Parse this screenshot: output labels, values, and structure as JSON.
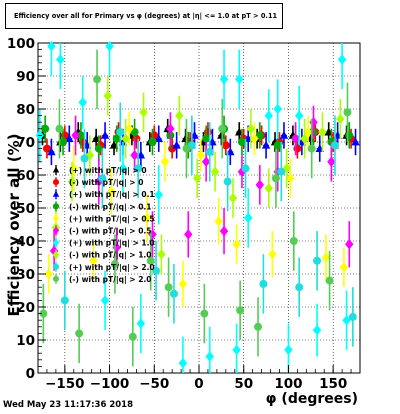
{
  "title": "Efficiency over all for Primary vs φ (degrees) at |η| <= 1.0 at pT > 0.11",
  "timestamp": "Wed May 23 11:17:36 2018",
  "chart_data": {
    "type": "scatter",
    "xlabel": "φ (degrees)",
    "ylabel": "Efficiency over all (%)",
    "xlim": [
      -180,
      180
    ],
    "ylim": [
      0,
      100
    ],
    "x_ticks": [
      -150,
      -100,
      -50,
      0,
      50,
      100,
      150
    ],
    "y_ticks": [
      0,
      10,
      20,
      30,
      40,
      50,
      60,
      70,
      80,
      90,
      100
    ],
    "grid": true,
    "legend_position": "left-middle",
    "series": [
      {
        "name": "(+) with pT/|q| > 0",
        "color": "#000000",
        "marker": "triangle",
        "x": [
          -175,
          -155,
          -135,
          -115,
          -95,
          -75,
          -55,
          -35,
          -15,
          5,
          25,
          45,
          65,
          85,
          105,
          125,
          145,
          165
        ],
        "y": [
          72,
          70,
          73,
          71,
          69,
          72,
          70,
          74,
          71,
          70,
          72,
          73,
          71,
          70,
          72,
          71,
          73,
          72
        ],
        "err": [
          3,
          3,
          3,
          3,
          3,
          3,
          3,
          3,
          3,
          3,
          3,
          3,
          3,
          3,
          3,
          3,
          3,
          3
        ]
      },
      {
        "name": "(-) with pT/|q| > 0",
        "color": "#ff0000",
        "marker": "circle",
        "x": [
          -170,
          -150,
          -130,
          -110,
          -90,
          -70,
          -50,
          -30,
          -10,
          10,
          30,
          50,
          70,
          90,
          110,
          130,
          150,
          170
        ],
        "y": [
          68,
          72,
          70,
          69,
          73,
          71,
          72,
          68,
          70,
          73,
          69,
          71,
          72,
          70,
          68,
          73,
          70,
          71
        ],
        "err": [
          3,
          3,
          3,
          3,
          3,
          3,
          3,
          3,
          3,
          3,
          3,
          3,
          3,
          3,
          3,
          3,
          3,
          3
        ]
      },
      {
        "name": "(+) with pT/|q| > 0.1",
        "color": "#0000ff",
        "marker": "triangle",
        "x": [
          -165,
          -145,
          -125,
          -105,
          -85,
          -65,
          -45,
          -25,
          -5,
          15,
          35,
          55,
          75,
          95,
          115,
          135,
          155,
          175
        ],
        "y": [
          67,
          71,
          69,
          72,
          70,
          66,
          71,
          69,
          72,
          70,
          67,
          71,
          69,
          72,
          70,
          68,
          72,
          70
        ],
        "err": [
          4,
          4,
          4,
          4,
          4,
          4,
          4,
          4,
          4,
          4,
          4,
          4,
          4,
          4,
          4,
          4,
          4,
          4
        ]
      },
      {
        "name": "(-) with pT/|q| > 0.1",
        "color": "#00aa00",
        "marker": "circle",
        "x": [
          -172,
          -152,
          -132,
          -112,
          -92,
          -72,
          -52,
          -32,
          -12,
          8,
          28,
          48,
          68,
          88,
          108,
          128,
          148,
          168
        ],
        "y": [
          74,
          70,
          72,
          68,
          71,
          73,
          70,
          72,
          69,
          71,
          74,
          70,
          72,
          69,
          71,
          73,
          70,
          72
        ],
        "err": [
          4,
          4,
          4,
          4,
          4,
          4,
          4,
          4,
          4,
          4,
          4,
          4,
          4,
          4,
          4,
          4,
          4,
          4
        ]
      },
      {
        "name": "(+) with pT/|q| > 0.5",
        "color": "#ffff00",
        "marker": "diamond",
        "x": [
          -168,
          -140,
          -118,
          -98,
          -78,
          -58,
          -38,
          -18,
          2,
          22,
          42,
          62,
          82,
          102,
          122,
          142,
          162
        ],
        "y": [
          30,
          62,
          34,
          55,
          74,
          47,
          64,
          27,
          66,
          46,
          39,
          71,
          36,
          59,
          73,
          35,
          32
        ],
        "err": [
          6,
          7,
          6,
          7,
          5,
          7,
          6,
          7,
          5,
          7,
          6,
          5,
          7,
          6,
          5,
          7,
          6
        ]
      },
      {
        "name": "(-) with pT/|q| > 0.5",
        "color": "#ff00ff",
        "marker": "diamond",
        "x": [
          -162,
          -138,
          -112,
          -92,
          -72,
          -52,
          -32,
          -12,
          8,
          28,
          48,
          68,
          88,
          108,
          128,
          148,
          168
        ],
        "y": [
          37,
          72,
          58,
          38,
          66,
          42,
          74,
          42,
          64,
          43,
          61,
          57,
          61,
          71,
          76,
          64,
          39
        ],
        "err": [
          6,
          6,
          7,
          6,
          5,
          7,
          5,
          7,
          6,
          7,
          5,
          6,
          6,
          5,
          5,
          6,
          7
        ]
      },
      {
        "name": "(+) with pT/|q| > 1.0",
        "color": "#00ffff",
        "marker": "diamond",
        "x": [
          -178,
          -165,
          -155,
          -130,
          -105,
          -100,
          -85,
          -65,
          -45,
          -18,
          12,
          28,
          42,
          45,
          55,
          78,
          88,
          100,
          112,
          132,
          160,
          165
        ],
        "y": [
          72,
          99,
          95,
          82,
          22,
          99,
          62,
          15,
          54,
          3,
          5,
          89,
          7,
          89,
          47,
          78,
          80,
          7,
          78,
          13,
          95,
          16
        ],
        "err": [
          8,
          9,
          9,
          8,
          9,
          9,
          8,
          9,
          9,
          8,
          9,
          9,
          8,
          9,
          9,
          8,
          9,
          8,
          9,
          8,
          9,
          9
        ],
        "comment": ""
      },
      {
        "name": "(-) with pT/|q| > 1.0",
        "color": "#aaff00",
        "marker": "diamond",
        "x": [
          -160,
          -142,
          -122,
          -102,
          -82,
          -62,
          -42,
          -22,
          -2,
          18,
          38,
          58,
          78,
          98,
          118,
          138,
          158
        ],
        "y": [
          44,
          58,
          66,
          84,
          71,
          79,
          36,
          78,
          59,
          61,
          53,
          74,
          56,
          62,
          71,
          73,
          77
        ],
        "err": [
          6,
          6,
          6,
          6,
          6,
          6,
          6,
          6,
          6,
          6,
          6,
          6,
          6,
          6,
          6,
          6,
          6
        ]
      },
      {
        "name": "(+) with pT/|q| > 2.0",
        "color": "#22dddd",
        "marker": "circle",
        "x": [
          -150,
          -128,
          -108,
          -88,
          -68,
          -48,
          -28,
          -8,
          12,
          32,
          52,
          72,
          92,
          112,
          132,
          152,
          172
        ],
        "y": [
          22,
          65,
          59,
          73,
          62,
          31,
          24,
          69,
          67,
          58,
          62,
          27,
          61,
          26,
          34,
          69,
          17
        ],
        "err": [
          9,
          9,
          9,
          9,
          9,
          9,
          9,
          9,
          9,
          9,
          9,
          9,
          9,
          9,
          9,
          9,
          9
        ]
      },
      {
        "name": "(-) with pT/|q| > 2.0",
        "color": "#55cc55",
        "marker": "circle",
        "x": [
          -174,
          -156,
          -134,
          -114,
          -94,
          -74,
          -54,
          -34,
          -14,
          6,
          26,
          46,
          66,
          86,
          106,
          126,
          146,
          166
        ],
        "y": [
          18,
          74,
          12,
          89,
          33,
          11,
          34,
          26,
          68,
          18,
          74,
          19,
          14,
          59,
          40,
          68,
          28,
          79
        ],
        "err": [
          9,
          9,
          9,
          9,
          9,
          9,
          9,
          9,
          9,
          9,
          9,
          9,
          9,
          9,
          9,
          9,
          9,
          9
        ]
      }
    ]
  }
}
